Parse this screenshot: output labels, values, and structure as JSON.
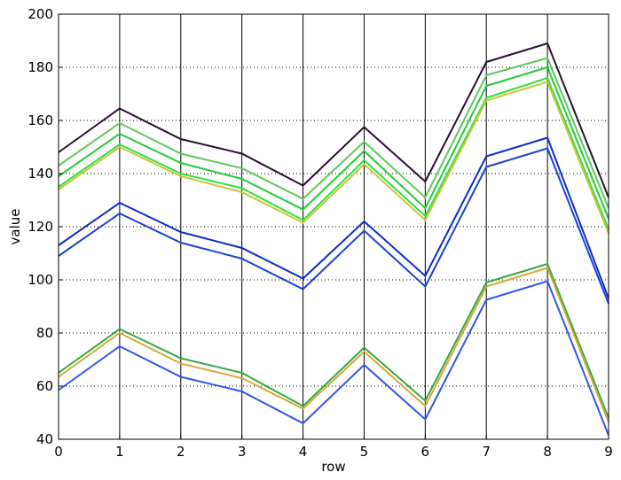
{
  "chart_data": {
    "type": "line",
    "title": "",
    "xlabel": "row",
    "ylabel": "value",
    "x": [
      0,
      1,
      2,
      3,
      4,
      5,
      6,
      7,
      8,
      9
    ],
    "xlim": [
      0,
      9
    ],
    "ylim": [
      40,
      200
    ],
    "xticks": [
      "0",
      "1",
      "2",
      "3",
      "4",
      "5",
      "6",
      "7",
      "8",
      "9"
    ],
    "yticks": [
      "40",
      "60",
      "80",
      "100",
      "120",
      "140",
      "160",
      "180",
      "200"
    ],
    "grid": {
      "x": "solid",
      "y": "dotted"
    },
    "legend": "none",
    "series": [
      {
        "color": "#2a1030",
        "values": [
          148,
          164.5,
          153,
          147.5,
          135.5,
          157.5,
          137,
          182,
          189,
          131
        ]
      },
      {
        "color": "#5fc95a",
        "values": [
          143,
          159,
          147.5,
          142,
          130.5,
          152,
          131,
          177,
          183.5,
          127
        ]
      },
      {
        "color": "#22cc33",
        "values": [
          139,
          155,
          144,
          138,
          126.5,
          148.5,
          127,
          173,
          180,
          123
        ]
      },
      {
        "color": "#33dd44",
        "values": [
          135,
          151,
          140,
          134.5,
          122.5,
          145,
          124,
          168.5,
          176,
          119
        ]
      },
      {
        "color": "#c8c83a",
        "values": [
          134,
          150,
          139,
          133,
          121.5,
          143.5,
          122.5,
          167.5,
          174.5,
          117.5
        ]
      },
      {
        "color": "#0a2fc8",
        "values": [
          113,
          129,
          118,
          112,
          100.5,
          122,
          101.5,
          146.5,
          153.5,
          93
        ]
      },
      {
        "color": "#1a44d6",
        "values": [
          109,
          125,
          114,
          108,
          96.5,
          118.5,
          97.5,
          142.5,
          149.5,
          91
        ]
      },
      {
        "color": "#33aa44",
        "values": [
          65,
          81.5,
          70.5,
          65,
          52.5,
          74.5,
          54.5,
          99,
          106,
          48
        ]
      },
      {
        "color": "#d4aa3a",
        "values": [
          63.5,
          80,
          68.5,
          63,
          51.5,
          73,
          52.5,
          97.5,
          104.5,
          46.5
        ]
      },
      {
        "color": "#3355ee",
        "values": [
          58.5,
          75,
          63.5,
          58,
          46,
          68,
          47.5,
          92.5,
          99.5,
          41.5
        ]
      }
    ]
  }
}
